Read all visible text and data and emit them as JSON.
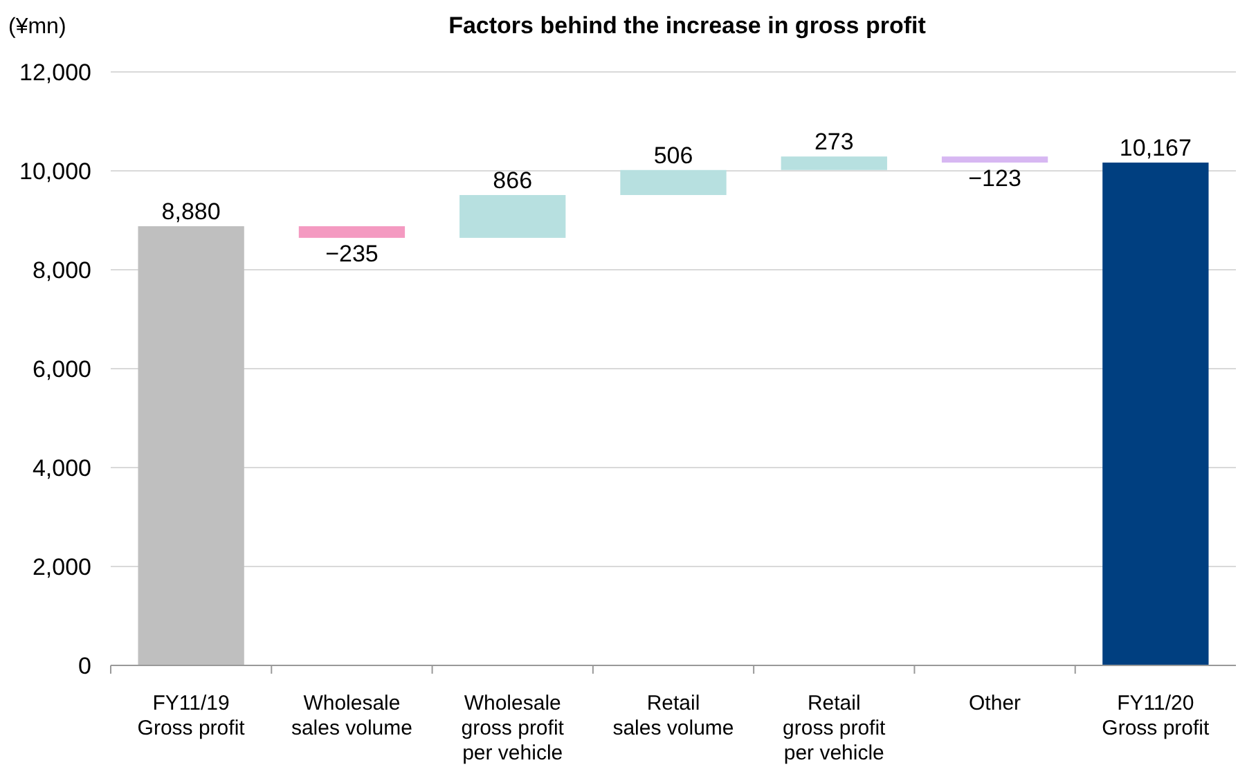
{
  "chart_data": {
    "type": "bar",
    "title": "Factors behind the increase in gross profit",
    "ylabel": "(¥mn)",
    "categories": [
      "FY11/19\nGross profit",
      "Wholesale\nsales volume",
      "Wholesale\ngross profit\nper vehicle",
      "Retail\nsales volume",
      "Retail\ngross profit\nper vehicle",
      "Other",
      "FY11/20\nGross profit"
    ],
    "values": [
      8880,
      -235,
      866,
      506,
      273,
      -123,
      10167
    ],
    "base": [
      0,
      8880,
      8645,
      9511,
      10017,
      10290,
      0
    ],
    "colors": [
      "#bfbfbf",
      "#f49ac1",
      "#b7e0e0",
      "#b7e0e0",
      "#b7e0e0",
      "#d7b7f2",
      "#003f80"
    ],
    "value_labels": [
      "8,880",
      "−235",
      "866",
      "506",
      "273",
      "−123",
      "10,167"
    ],
    "ylim": [
      0,
      12000
    ],
    "yticks": [
      0,
      {
        "value": 2000,
        "label": "2,000"
      },
      {
        "value": 4000,
        "label": "4,000"
      },
      {
        "value": 6000,
        "label": "6,000"
      },
      {
        "value": 8000,
        "label": "8,000"
      },
      {
        "value": 10000,
        "label": "10,000"
      },
      {
        "value": 12000,
        "label": "12,000"
      }
    ],
    "grid": "y"
  }
}
